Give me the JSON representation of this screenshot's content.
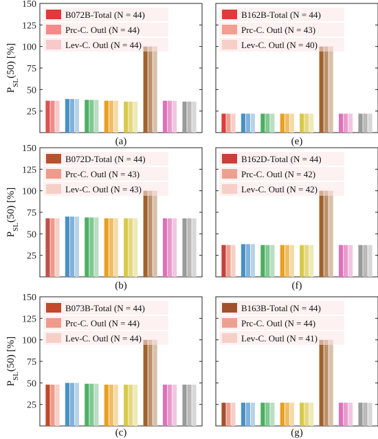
{
  "ylabel": {
    "main": "P",
    "sub": "SL",
    "rest": "(50) [%]"
  },
  "group_colors": [
    "#d9534f",
    "#4a90c8",
    "#4caf62",
    "#e8a020",
    "#d8c84a",
    "#a0622d",
    "#e070b8",
    "#9a9a9a"
  ],
  "chart_data": [
    {
      "type": "bar",
      "panel": "(a)",
      "ylim": [
        0,
        150
      ],
      "yticks": [
        25,
        50,
        75,
        100,
        125,
        150
      ],
      "legend_swatch_colors": [
        "#e03a3a",
        "#f58a8a",
        "#f7c9c9"
      ],
      "first_group_colors": [
        "#d9534f",
        "#f08a8a",
        "#f7c9c9"
      ],
      "series": [
        {
          "name": "B072B-Total (N = 44)",
          "values": [
            37,
            39,
            38,
            37,
            36,
            100,
            37,
            36
          ]
        },
        {
          "name": "Prc-C. Outl (N = 44)",
          "values": [
            37,
            39,
            38,
            37,
            36,
            100,
            37,
            36
          ]
        },
        {
          "name": "Lev-C. Outl (N = 44)",
          "values": [
            37,
            39,
            38,
            37,
            36,
            100,
            37,
            36
          ]
        }
      ]
    },
    {
      "type": "bar",
      "panel": "(e)",
      "ylim": [
        0,
        150
      ],
      "yticks": [
        25,
        50,
        75,
        100,
        125,
        150
      ],
      "legend_swatch_colors": [
        "#e03a3a",
        "#f0a090",
        "#f7cfc7"
      ],
      "first_group_colors": [
        "#e03a3a",
        "#f0a090",
        "#f7cfc7"
      ],
      "series": [
        {
          "name": "B162B-Total (N = 44)",
          "values": [
            22,
            22,
            22,
            22,
            22,
            100,
            22,
            22
          ]
        },
        {
          "name": "Prc-C. Outl (N = 43)",
          "values": [
            22,
            22,
            22,
            22,
            22,
            100,
            22,
            22
          ]
        },
        {
          "name": "Lev-C. Outl (N = 40)",
          "values": [
            22,
            22,
            22,
            22,
            22,
            100,
            22,
            22
          ]
        }
      ]
    },
    {
      "type": "bar",
      "panel": "(b)",
      "ylim": [
        0,
        150
      ],
      "yticks": [
        25,
        50,
        75,
        100,
        125,
        150
      ],
      "legend_swatch_colors": [
        "#b8502e",
        "#ef9a8a",
        "#f7cfc7"
      ],
      "first_group_colors": [
        "#c0504a",
        "#ef9a8a",
        "#f7cfc7"
      ],
      "series": [
        {
          "name": "B072D-Total (N = 44)",
          "values": [
            68,
            70,
            69,
            68,
            68,
            100,
            68,
            68
          ]
        },
        {
          "name": "Prc-C. Outl (N = 43)",
          "values": [
            68,
            70,
            69,
            68,
            68,
            100,
            68,
            68
          ]
        },
        {
          "name": "Lev-C. Outl (N = 43)",
          "values": [
            68,
            70,
            69,
            68,
            68,
            100,
            68,
            68
          ]
        }
      ]
    },
    {
      "type": "bar",
      "panel": "(f)",
      "ylim": [
        0,
        150
      ],
      "yticks": [
        25,
        50,
        75,
        100,
        125,
        150
      ],
      "legend_swatch_colors": [
        "#c8403a",
        "#eea090",
        "#f7cfc7"
      ],
      "first_group_colors": [
        "#c8403a",
        "#eea090",
        "#f7cfc7"
      ],
      "series": [
        {
          "name": "B162D-Total (N = 44)",
          "values": [
            37,
            38,
            37,
            37,
            37,
            100,
            37,
            37
          ]
        },
        {
          "name": "Prc-C. Outl (N = 42)",
          "values": [
            37,
            38,
            37,
            37,
            37,
            100,
            37,
            37
          ]
        },
        {
          "name": "Lev-C. Outl (N = 42)",
          "values": [
            37,
            38,
            37,
            37,
            37,
            100,
            37,
            37
          ]
        }
      ]
    },
    {
      "type": "bar",
      "panel": "(c)",
      "ylim": [
        0,
        150
      ],
      "yticks": [
        25,
        50,
        75,
        100,
        125,
        150
      ],
      "legend_swatch_colors": [
        "#c04a2a",
        "#ef9a8a",
        "#f7cfc7"
      ],
      "first_group_colors": [
        "#c04a2a",
        "#ef9a8a",
        "#f7cfc7"
      ],
      "series": [
        {
          "name": "B073B-Total (N = 44)",
          "values": [
            48,
            50,
            49,
            48,
            48,
            100,
            48,
            48
          ]
        },
        {
          "name": "Prc-C. Outl (N = 44)",
          "values": [
            48,
            50,
            49,
            48,
            48,
            100,
            48,
            48
          ]
        },
        {
          "name": "Lev-C. Outl (N = 44)",
          "values": [
            48,
            50,
            49,
            48,
            48,
            100,
            48,
            48
          ]
        }
      ]
    },
    {
      "type": "bar",
      "panel": "(g)",
      "ylim": [
        0,
        150
      ],
      "yticks": [
        25,
        50,
        75,
        100,
        125,
        150
      ],
      "legend_swatch_colors": [
        "#a0522d",
        "#eea090",
        "#f7cfc7"
      ],
      "first_group_colors": [
        "#a0522d",
        "#eea090",
        "#f7cfc7"
      ],
      "series": [
        {
          "name": "B163B-Total (N = 44)",
          "values": [
            27,
            27,
            27,
            27,
            27,
            100,
            27,
            27
          ]
        },
        {
          "name": "Prc-C. Outl (N = 44)",
          "values": [
            27,
            27,
            27,
            27,
            27,
            100,
            27,
            27
          ]
        },
        {
          "name": "Lev-C. Outl (N = 41)",
          "values": [
            27,
            27,
            27,
            27,
            27,
            100,
            27,
            27
          ]
        }
      ]
    }
  ]
}
